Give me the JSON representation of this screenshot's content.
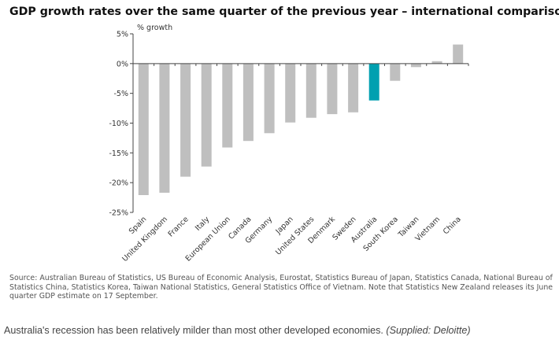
{
  "chart_data": {
    "type": "bar",
    "title": "GDP growth rates over the same quarter of the previous year – international comparison",
    "ylabel": "% growth",
    "xlabel": "",
    "ylim": [
      -25,
      5
    ],
    "yticks": [
      "5%",
      "0%",
      "-5%",
      "-10%",
      "-15%",
      "-20%",
      "-25%"
    ],
    "ytick_values": [
      5,
      0,
      -5,
      -10,
      -15,
      -20,
      -25
    ],
    "categories": [
      "Spain",
      "United Kingdom",
      "France",
      "Italy",
      "European Union",
      "Canada",
      "Germany",
      "Japan",
      "United States",
      "Denmark",
      "Sweden",
      "Australia",
      "South Korea",
      "Taiwan",
      "Vietnam",
      "China"
    ],
    "values": [
      -22.1,
      -21.7,
      -19.0,
      -17.3,
      -14.1,
      -13.0,
      -11.7,
      -9.9,
      -9.1,
      -8.5,
      -8.2,
      -6.2,
      -2.9,
      -0.6,
      0.4,
      3.2
    ],
    "highlight": "Australia",
    "colors": {
      "bar": "#bfbfbf",
      "highlight": "#00a0b0",
      "axis": "#444444"
    },
    "grid": false,
    "legend": "none"
  },
  "source_note": "Source: Australian Bureau of Statistics, US Bureau of Economic Analysis, Eurostat, Statistics Bureau of Japan, Statistics Canada, National Bureau of Statistics China, Statistics Korea, Taiwan National Statistics, General Statistics Office of Vietnam.  Note that Statistics New Zealand releases its June quarter GDP estimate on 17 September.",
  "caption": {
    "text": "Australia's recession has been relatively milder than most other developed economies.",
    "credit": "(Supplied: Deloitte)"
  }
}
